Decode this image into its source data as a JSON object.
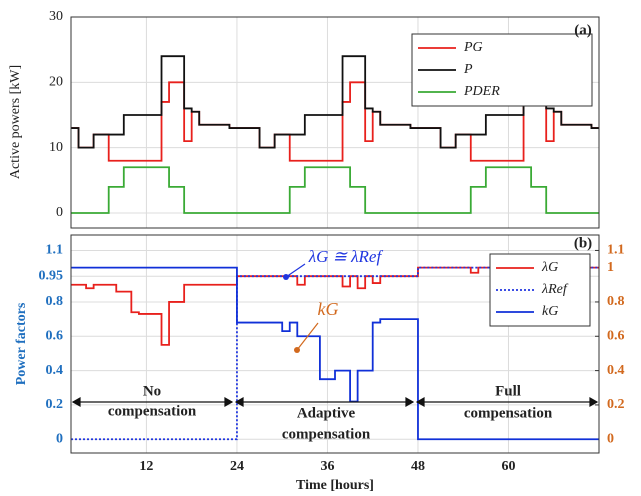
{
  "chart_data": [
    {
      "type": "line",
      "drawstyle": "steps-post",
      "ylabel": "Active powers [kW]",
      "grid": true,
      "legend": "upper right",
      "annotations": [
        "(a)"
      ],
      "xlim": [
        2,
        72
      ],
      "xticks": [
        12,
        24,
        36,
        48,
        60
      ],
      "ylim": [
        -2.3,
        30
      ],
      "yticks": [
        0,
        10,
        20,
        30
      ],
      "x": [
        2,
        3,
        4,
        5,
        6,
        7,
        8,
        9,
        10,
        11,
        12,
        13,
        14,
        15,
        16,
        17,
        18,
        19,
        20,
        21,
        22,
        23,
        24,
        25,
        26,
        27,
        28,
        29,
        30,
        31,
        32,
        33,
        34,
        35,
        36,
        37,
        38,
        39,
        40,
        41,
        42,
        43,
        44,
        45,
        46,
        47,
        48,
        49,
        50,
        51,
        52,
        53,
        54,
        55,
        56,
        57,
        58,
        59,
        60,
        61,
        62,
        63,
        64,
        65,
        66,
        67,
        68,
        69,
        70,
        71,
        72
      ],
      "series": [
        {
          "name": "PG",
          "color": "#e8201c",
          "values": [
            13,
            10,
            10,
            12,
            12,
            8,
            8,
            8,
            8,
            8,
            8,
            8,
            17,
            20,
            20,
            11,
            15.5,
            13.5,
            13.5,
            13.5,
            13.5,
            13,
            13,
            13,
            13,
            10,
            10,
            12,
            12,
            8,
            8,
            8,
            8,
            8,
            8,
            8,
            17,
            20,
            20,
            11,
            15.5,
            13.5,
            13.5,
            13.5,
            13.5,
            13,
            13,
            13,
            13,
            10,
            10,
            12,
            12,
            8,
            8,
            8,
            8,
            8,
            8,
            8,
            17,
            20,
            20,
            11,
            15.5,
            13.5,
            13.5,
            13.5,
            13.5,
            13,
            13
          ]
        },
        {
          "name": "P",
          "color": "#111111",
          "values": [
            13,
            10,
            10,
            12,
            12,
            12,
            12,
            15,
            15,
            15,
            15,
            15,
            24,
            24,
            24,
            16,
            15.5,
            13.5,
            13.5,
            13.5,
            13.5,
            13,
            13,
            13,
            13,
            10,
            10,
            12,
            12,
            12,
            12,
            15,
            15,
            15,
            15,
            15,
            24,
            24,
            24,
            16,
            15.5,
            13.5,
            13.5,
            13.5,
            13.5,
            13,
            13,
            13,
            13,
            10,
            10,
            12,
            12,
            12,
            12,
            15,
            15,
            15,
            15,
            15,
            24,
            24,
            24,
            16,
            15.5,
            13.5,
            13.5,
            13.5,
            13.5,
            13,
            13
          ]
        },
        {
          "name": "PDER",
          "color": "#3aaa35",
          "values": [
            0,
            0,
            0,
            0,
            0,
            4,
            4,
            7,
            7,
            7,
            7,
            7,
            7,
            4,
            4,
            0,
            0,
            0,
            0,
            0,
            0,
            0,
            0,
            0,
            0,
            0,
            0,
            0,
            0,
            4,
            4,
            7,
            7,
            7,
            7,
            7,
            7,
            4,
            4,
            0,
            0,
            0,
            0,
            0,
            0,
            0,
            0,
            0,
            0,
            0,
            0,
            0,
            0,
            4,
            4,
            7,
            7,
            7,
            7,
            7,
            7,
            4,
            4,
            0,
            0,
            0,
            0,
            0,
            0,
            0,
            0
          ]
        }
      ]
    },
    {
      "type": "line",
      "drawstyle": "steps-post",
      "xlabel": "Time [hours]",
      "ylabel": "Power factors",
      "grid": true,
      "legend": "upper right",
      "annotations": [
        "(b)",
        "λG ≅ λRef",
        "kG",
        "No",
        "compensation",
        "Adaptive",
        "compensation",
        "Full",
        "compensation"
      ],
      "xlim": [
        2,
        72
      ],
      "xticks": [
        12,
        24,
        36,
        48,
        60
      ],
      "ylim": [
        -0.08,
        1.19
      ],
      "yticks": [
        0,
        0.2,
        0.4,
        0.6,
        0.8,
        0.95,
        1.1
      ],
      "y2lim": [
        -0.08,
        1.19
      ],
      "y2ticks": [
        0,
        0.2,
        0.4,
        0.6,
        0.8,
        1,
        1.1
      ],
      "x": [
        2,
        3,
        4,
        5,
        6,
        7,
        8,
        9,
        10,
        11,
        12,
        13,
        14,
        15,
        16,
        17,
        18,
        19,
        20,
        21,
        22,
        23,
        24,
        25,
        26,
        27,
        28,
        29,
        30,
        31,
        32,
        33,
        34,
        35,
        36,
        37,
        38,
        39,
        40,
        41,
        42,
        43,
        44,
        45,
        46,
        47,
        48,
        49,
        50,
        51,
        52,
        53,
        54,
        55,
        56,
        57,
        58,
        59,
        60,
        61,
        62,
        63,
        64,
        65,
        66,
        67,
        68,
        69,
        70,
        71,
        72
      ],
      "series": [
        {
          "name": "λG",
          "color": "#e8201c",
          "linestyle": "solid",
          "values": [
            0.9,
            0.9,
            0.88,
            0.9,
            0.9,
            0.9,
            0.86,
            0.86,
            0.74,
            0.73,
            0.73,
            0.73,
            0.55,
            0.8,
            0.8,
            0.9,
            0.9,
            0.9,
            0.9,
            0.9,
            0.9,
            0.9,
            0.95,
            0.95,
            0.95,
            0.95,
            0.95,
            0.95,
            0.95,
            0.95,
            0.9,
            0.95,
            0.95,
            0.95,
            0.95,
            0.95,
            0.89,
            0.95,
            0.88,
            0.95,
            0.91,
            0.95,
            0.95,
            0.95,
            0.95,
            0.95,
            1,
            1,
            1,
            1,
            1,
            1,
            1,
            0.97,
            1,
            1,
            1,
            1,
            0.96,
            1,
            1,
            1,
            0.96,
            1,
            1,
            1,
            0.97,
            1,
            1,
            1,
            1
          ]
        },
        {
          "name": "λRef",
          "color": "#2036e0",
          "linestyle": "dotted",
          "values": [
            0,
            0,
            0,
            0,
            0,
            0,
            0,
            0,
            0,
            0,
            0,
            0,
            0,
            0,
            0,
            0,
            0,
            0,
            0,
            0,
            0,
            0,
            0.95,
            0.95,
            0.95,
            0.95,
            0.95,
            0.95,
            0.95,
            0.95,
            0.95,
            0.95,
            0.95,
            0.95,
            0.95,
            0.95,
            0.95,
            0.95,
            0.95,
            0.95,
            0.95,
            0.95,
            0.95,
            0.95,
            0.95,
            0.95,
            1,
            1,
            1,
            1,
            1,
            1,
            1,
            1,
            1,
            1,
            1,
            1,
            1,
            1,
            1,
            1,
            1,
            1,
            1,
            1,
            1,
            1,
            1,
            1,
            1
          ]
        },
        {
          "name": "kG",
          "color": "#1030d8",
          "linestyle": "solid",
          "axis": "y2",
          "values": [
            1,
            1,
            1,
            1,
            1,
            1,
            1,
            1,
            1,
            1,
            1,
            1,
            1,
            1,
            1,
            1,
            1,
            1,
            1,
            1,
            1,
            1,
            0.68,
            0.68,
            0.68,
            0.68,
            0.68,
            0.68,
            0.63,
            0.68,
            0.6,
            0.6,
            0.6,
            0.35,
            0.35,
            0.4,
            0.4,
            0.22,
            0.4,
            0.4,
            0.68,
            0.7,
            0.7,
            0.7,
            0.7,
            0.7,
            0,
            0,
            0,
            0,
            0,
            0,
            0,
            0,
            0,
            0,
            0,
            0,
            0,
            0,
            0,
            0,
            0,
            0,
            0,
            0,
            0,
            0,
            0,
            0,
            0
          ]
        }
      ]
    }
  ]
}
